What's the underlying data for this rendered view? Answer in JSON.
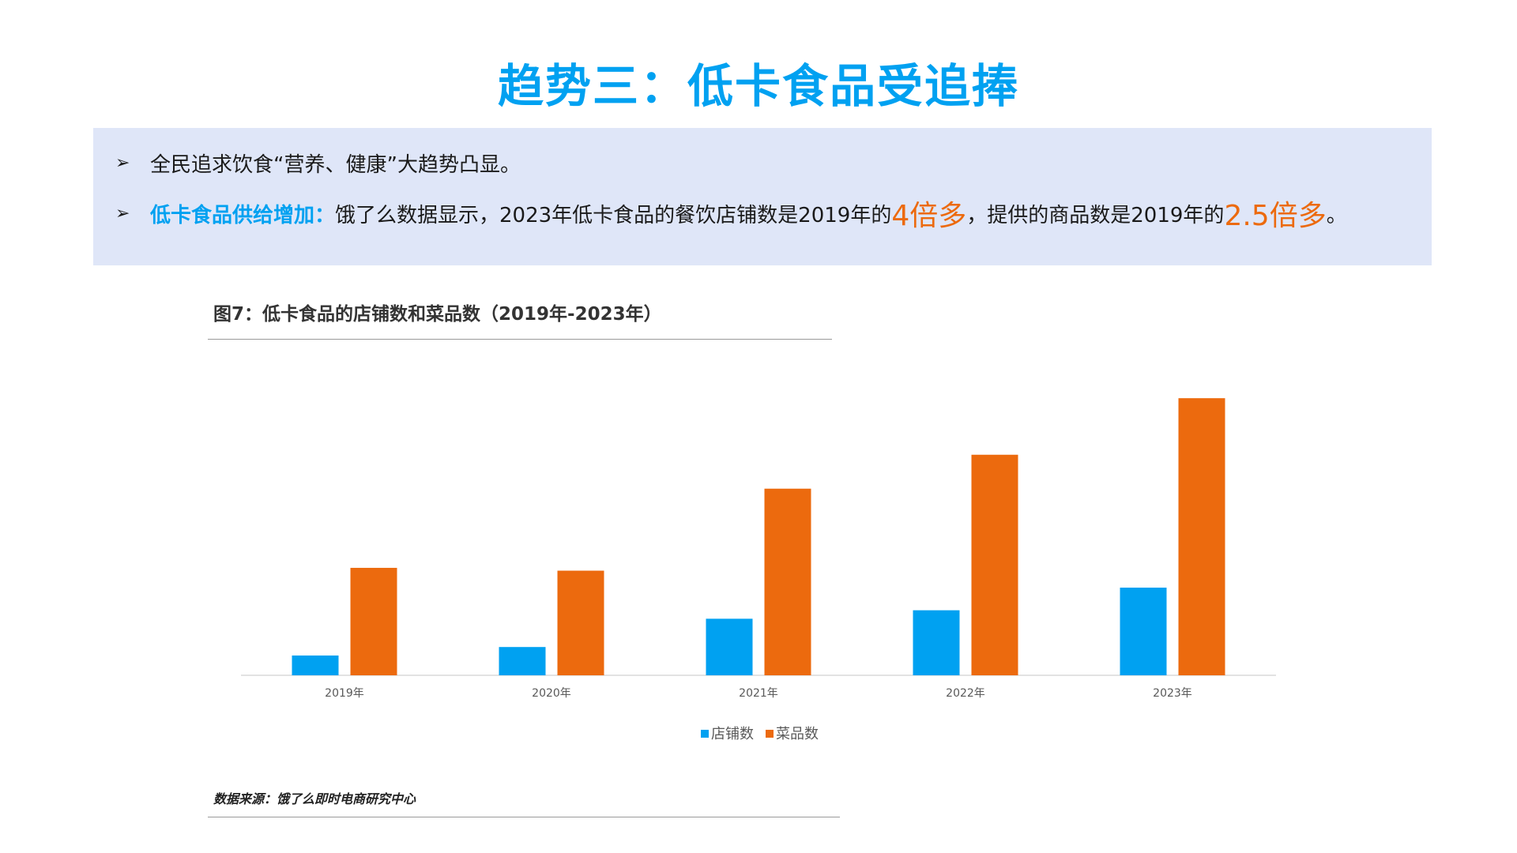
{
  "page": {
    "title": "趋势三：低卡食品受追捧",
    "bullets": [
      {
        "text": "全民追求饮食“营养、健康”大趋势凸显。"
      },
      {
        "lead": "低卡食品供给增加：",
        "text_a": "饿了么数据显示，2023年低卡食品的餐饮店铺数是2019年的",
        "highlight_a": "4倍多",
        "text_b": "，提供的商品数是2019年的",
        "highlight_b": "2.5倍多",
        "text_c": "。"
      }
    ],
    "source": "数据来源：饿了么即时电商研究中心"
  },
  "chart_data": {
    "type": "bar",
    "title": "图7：低卡食品的店铺数和菜品数（2019年-2023年）",
    "categories": [
      "2019年",
      "2020年",
      "2021年",
      "2022年",
      "2023年"
    ],
    "series": [
      {
        "name": "店铺数",
        "color": "#00A1F1",
        "values": [
          7,
          10,
          20,
          23,
          31
        ]
      },
      {
        "name": "菜品数",
        "color": "#EC6A0E",
        "values": [
          38,
          37,
          66,
          78,
          98
        ]
      }
    ],
    "ylim": [
      0,
      100
    ],
    "grid": false,
    "y_axis_visible": false,
    "legend": "bottom-center"
  }
}
